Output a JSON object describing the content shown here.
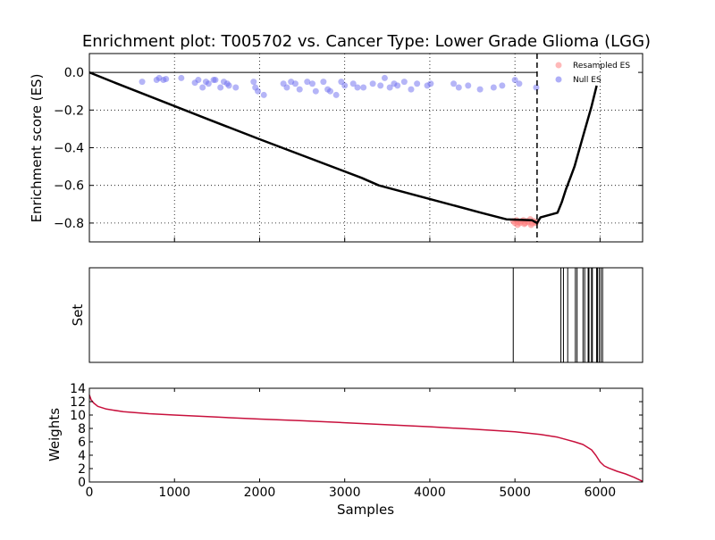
{
  "chart_data": [
    {
      "panel": "enrichment",
      "type": "line",
      "title": "Enrichment plot: T005702 vs. Cancer Type: Lower Grade Glioma (LGG)",
      "xlabel": "",
      "ylabel": "Enrichment score (ES)",
      "xlim": [
        0,
        6500
      ],
      "ylim": [
        -0.9,
        0.1
      ],
      "yticks": [
        "0.0",
        "−0.2",
        "−0.4",
        "−0.6",
        "−0.8"
      ],
      "ytick_values": [
        0.0,
        -0.2,
        -0.4,
        -0.6,
        -0.8
      ],
      "xticks": [
        1000,
        2000,
        3000,
        4000,
        5000,
        6000
      ],
      "grid": true,
      "legend_position": "top-right",
      "legend": [
        "Resampled ES",
        "Null ES"
      ],
      "colors": {
        "es_line": "#000000",
        "resampled": "#ff8080",
        "null": "#6c6cf0",
        "cutoff": "#000000"
      },
      "es_curve": {
        "x": [
          0,
          300,
          1400,
          2000,
          3200,
          3400,
          3900,
          4600,
          4900,
          5200,
          5260,
          5300,
          5500,
          5550,
          5600,
          5650,
          5700,
          5800,
          5900,
          5960
        ],
        "y": [
          0.0,
          -0.055,
          -0.25,
          -0.355,
          -0.56,
          -0.6,
          -0.66,
          -0.745,
          -0.78,
          -0.785,
          -0.8,
          -0.77,
          -0.745,
          -0.69,
          -0.62,
          -0.56,
          -0.5,
          -0.34,
          -0.18,
          -0.07
        ]
      },
      "cutoff_x": 5260,
      "null_es": {
        "x": [
          620,
          790,
          820,
          870,
          900,
          1080,
          1240,
          1280,
          1330,
          1370,
          1400,
          1460,
          1480,
          1540,
          1580,
          1620,
          1640,
          1720,
          1930,
          1950,
          1980,
          2050,
          2280,
          2320,
          2370,
          2420,
          2470,
          2560,
          2620,
          2660,
          2750,
          2800,
          2830,
          2900,
          2960,
          3000,
          3100,
          3150,
          3220,
          3330,
          3420,
          3470,
          3530,
          3580,
          3620,
          3700,
          3780,
          3850,
          3970,
          4010,
          4280,
          4340,
          4450,
          4590,
          4750,
          4850,
          5000,
          5050,
          5250
        ],
        "y": [
          -0.05,
          -0.04,
          -0.03,
          -0.04,
          -0.035,
          -0.03,
          -0.055,
          -0.04,
          -0.08,
          -0.05,
          -0.06,
          -0.04,
          -0.04,
          -0.08,
          -0.05,
          -0.06,
          -0.07,
          -0.08,
          -0.05,
          -0.08,
          -0.1,
          -0.12,
          -0.06,
          -0.08,
          -0.05,
          -0.06,
          -0.09,
          -0.05,
          -0.06,
          -0.1,
          -0.05,
          -0.09,
          -0.1,
          -0.12,
          -0.05,
          -0.07,
          -0.06,
          -0.08,
          -0.08,
          -0.06,
          -0.07,
          -0.03,
          -0.08,
          -0.06,
          -0.07,
          -0.05,
          -0.09,
          -0.06,
          -0.07,
          -0.06,
          -0.06,
          -0.08,
          -0.07,
          -0.09,
          -0.08,
          -0.07,
          -0.04,
          -0.06,
          -0.08
        ]
      },
      "resampled_es": {
        "x": [
          4980,
          5000,
          5020,
          5040,
          5060,
          5080,
          5100,
          5120,
          5140,
          5160,
          5180,
          5200,
          5220,
          5240,
          5250,
          5030,
          5110,
          5190
        ],
        "y": [
          -0.79,
          -0.8,
          -0.785,
          -0.795,
          -0.8,
          -0.79,
          -0.785,
          -0.8,
          -0.79,
          -0.795,
          -0.78,
          -0.8,
          -0.79,
          -0.8,
          -0.795,
          -0.81,
          -0.805,
          -0.81
        ]
      }
    },
    {
      "panel": "set",
      "type": "bar",
      "title": "",
      "xlabel": "",
      "ylabel": "Set",
      "xlim": [
        0,
        6500
      ],
      "grid": false,
      "hit_positions": [
        4980,
        5540,
        5570,
        5620,
        5710,
        5730,
        5800,
        5820,
        5860,
        5870,
        5900,
        5910,
        5960,
        5970,
        5990,
        6010,
        6030
      ]
    },
    {
      "panel": "weights",
      "type": "line",
      "title": "",
      "xlabel": "Samples",
      "ylabel": "Weights",
      "xlim": [
        0,
        6500
      ],
      "ylim": [
        0,
        14
      ],
      "yticks": [
        "0",
        "2",
        "4",
        "6",
        "8",
        "10",
        "12",
        "14"
      ],
      "ytick_values": [
        0,
        2,
        4,
        6,
        8,
        10,
        12,
        14
      ],
      "xticks": [
        "0",
        "1000",
        "2000",
        "3000",
        "4000",
        "5000",
        "6000"
      ],
      "xtick_values": [
        0,
        1000,
        2000,
        3000,
        4000,
        5000,
        6000
      ],
      "grid": false,
      "colors": {
        "weights_line": "#c8103c"
      },
      "x": [
        0,
        20,
        50,
        100,
        200,
        400,
        700,
        1000,
        1500,
        2000,
        2500,
        3000,
        3500,
        4000,
        4500,
        5000,
        5300,
        5500,
        5700,
        5800,
        5900,
        5950,
        6000,
        6050,
        6100,
        6200,
        6300,
        6400,
        6500
      ],
      "y": [
        13.0,
        12.3,
        11.8,
        11.3,
        10.9,
        10.5,
        10.2,
        10.0,
        9.7,
        9.4,
        9.15,
        8.85,
        8.55,
        8.25,
        7.9,
        7.5,
        7.1,
        6.7,
        6.0,
        5.6,
        4.8,
        4.0,
        3.0,
        2.4,
        2.1,
        1.6,
        1.2,
        0.7,
        0.1
      ]
    }
  ]
}
